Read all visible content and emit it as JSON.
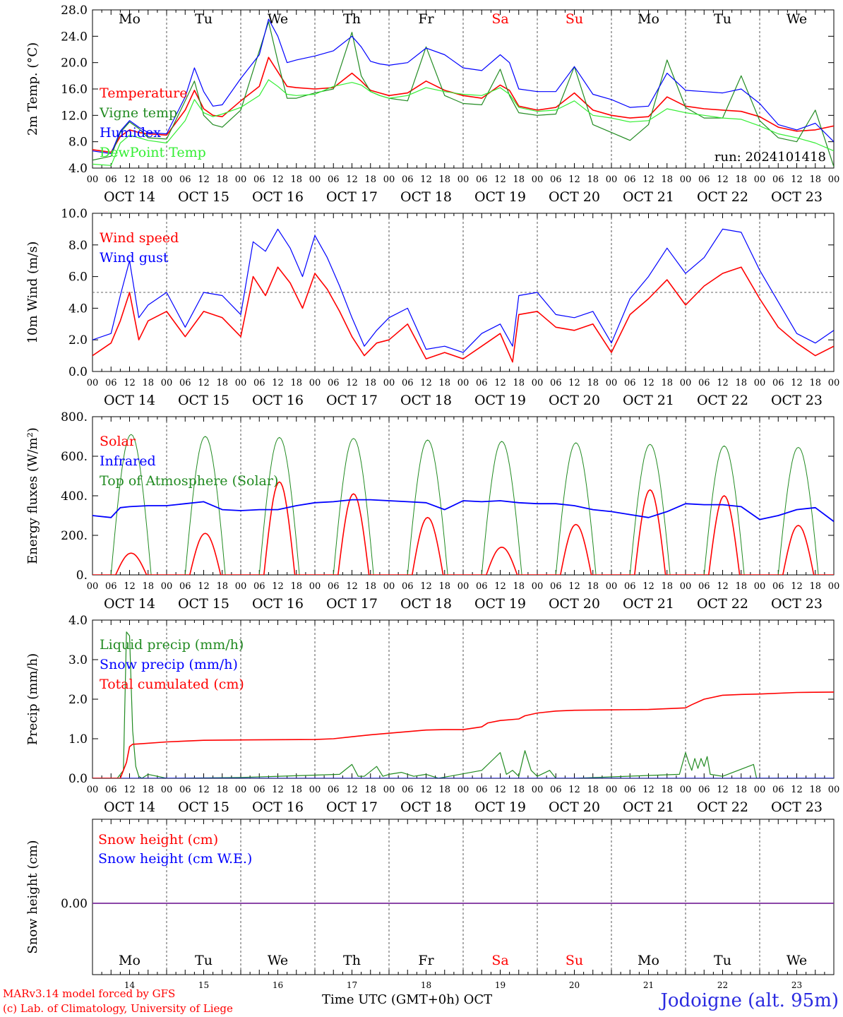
{
  "run_label": "run: 2024101418",
  "x_axis_title": "Time UTC (GMT+0h)",
  "month_label": "OCT",
  "station": "Jodoigne (alt. 95m)",
  "credits": [
    "MARv3.14 model forced by GFS",
    "(c) Lab. of Climatology, University of Liege"
  ],
  "weekdays": [
    {
      "label": "Mo",
      "weekend": false
    },
    {
      "label": "Tu",
      "weekend": false
    },
    {
      "label": "We",
      "weekend": false
    },
    {
      "label": "Th",
      "weekend": false
    },
    {
      "label": "Fr",
      "weekend": false
    },
    {
      "label": "Sa",
      "weekend": true
    },
    {
      "label": "Su",
      "weekend": true
    },
    {
      "label": "Mo",
      "weekend": false
    },
    {
      "label": "Tu",
      "weekend": false
    },
    {
      "label": "We",
      "weekend": false
    }
  ],
  "dates": [
    "OCT 14",
    "OCT 15",
    "OCT 16",
    "OCT 17",
    "OCT 18",
    "OCT 19",
    "OCT 20",
    "OCT 21",
    "OCT 22",
    "OCT 23"
  ],
  "day_numbers": [
    "14",
    "15",
    "16",
    "17",
    "18",
    "19",
    "20",
    "21",
    "22",
    "23"
  ],
  "hour_ticks": [
    "00",
    "06",
    "12",
    "18"
  ],
  "colors": {
    "red": "#ff0000",
    "green": "#228b22",
    "blue": "#0000ff",
    "lightgreen": "#33ee33",
    "purple": "#7b2d9b",
    "weekend": "#ff0000"
  },
  "chart_data": [
    {
      "type": "line",
      "ylabel": "2m Temp. (°C)",
      "ylim": [
        4,
        28
      ],
      "yticks": [
        "4.0",
        "8.0",
        "12.0",
        "16.0",
        "20.0",
        "24.0",
        "28.0"
      ],
      "x_unit": "hours since OCT 14 00 UTC",
      "series": [
        {
          "name": "Temperature",
          "color": "red",
          "x": [
            0,
            6,
            9,
            12,
            15,
            18,
            24,
            30,
            33,
            36,
            39,
            42,
            48,
            54,
            57,
            60,
            63,
            66,
            72,
            78,
            84,
            87,
            90,
            93,
            96,
            102,
            108,
            114,
            120,
            126,
            132,
            135,
            138,
            144,
            150,
            156,
            162,
            168,
            174,
            180,
            186,
            192,
            198,
            204,
            210,
            216,
            222,
            228,
            234,
            240
          ],
          "y": [
            6.8,
            6.4,
            8.8,
            9.8,
            9.4,
            9.2,
            9.0,
            12.8,
            15.8,
            13.0,
            12.0,
            11.8,
            14.2,
            16.4,
            20.8,
            18.6,
            16.4,
            16.2,
            16.0,
            16.2,
            18.4,
            17.2,
            15.8,
            15.4,
            15.0,
            15.4,
            17.2,
            15.8,
            15.0,
            14.6,
            16.6,
            15.8,
            13.4,
            12.8,
            13.2,
            15.4,
            12.8,
            12.0,
            11.6,
            11.8,
            14.8,
            13.4,
            13.0,
            12.8,
            12.6,
            11.8,
            10.2,
            9.6,
            9.8,
            10.4
          ]
        },
        {
          "name": "Vigne temp",
          "color": "green",
          "x": [
            0,
            6,
            9,
            12,
            15,
            18,
            24,
            30,
            33,
            36,
            39,
            42,
            48,
            54,
            57,
            60,
            63,
            66,
            72,
            78,
            84,
            87,
            90,
            93,
            96,
            102,
            108,
            114,
            120,
            126,
            132,
            135,
            138,
            144,
            150,
            156,
            162,
            168,
            174,
            180,
            186,
            192,
            198,
            204,
            210,
            216,
            222,
            228,
            234,
            240
          ],
          "y": [
            5.2,
            5.8,
            9.4,
            11.0,
            10.0,
            8.6,
            8.4,
            14.2,
            17.2,
            12.0,
            10.6,
            10.2,
            12.8,
            21.8,
            26.2,
            20.2,
            14.6,
            14.6,
            15.4,
            16.0,
            24.6,
            18.0,
            15.6,
            15.0,
            14.6,
            14.2,
            22.4,
            15.0,
            13.8,
            13.6,
            19.0,
            15.0,
            12.4,
            12.0,
            12.2,
            19.4,
            10.6,
            9.4,
            8.2,
            10.6,
            20.4,
            13.2,
            11.6,
            11.6,
            18.0,
            11.2,
            8.6,
            8.0,
            12.8,
            4.2
          ]
        },
        {
          "name": "Humidex",
          "color": "blue",
          "x": [
            0,
            6,
            9,
            12,
            15,
            18,
            24,
            30,
            33,
            36,
            39,
            42,
            48,
            54,
            57,
            60,
            63,
            66,
            72,
            78,
            84,
            87,
            90,
            93,
            96,
            102,
            108,
            114,
            120,
            126,
            132,
            135,
            138,
            144,
            150,
            156,
            162,
            168,
            174,
            180,
            186,
            192,
            198,
            204,
            210,
            216,
            222,
            228,
            234,
            240
          ],
          "y": [
            6.6,
            6.2,
            9.6,
            11.2,
            10.2,
            9.4,
            9.2,
            14.8,
            19.2,
            15.6,
            13.4,
            13.6,
            17.6,
            21.2,
            26.6,
            24.0,
            20.0,
            20.4,
            21.0,
            21.8,
            24.0,
            22.4,
            20.2,
            19.8,
            19.6,
            20.0,
            22.2,
            21.2,
            19.2,
            18.8,
            21.2,
            20.0,
            16.0,
            15.6,
            15.6,
            19.4,
            15.2,
            14.4,
            13.2,
            13.4,
            18.4,
            15.8,
            15.6,
            15.4,
            16.0,
            13.8,
            10.6,
            9.8,
            10.8,
            8.0
          ]
        },
        {
          "name": "DewPoint Temp",
          "color": "lightgreen",
          "x": [
            0,
            6,
            9,
            12,
            15,
            18,
            24,
            30,
            33,
            36,
            39,
            42,
            48,
            54,
            57,
            60,
            63,
            66,
            72,
            78,
            84,
            87,
            90,
            93,
            96,
            102,
            108,
            114,
            120,
            126,
            132,
            135,
            138,
            144,
            150,
            156,
            162,
            168,
            174,
            180,
            186,
            192,
            198,
            204,
            210,
            216,
            222,
            228,
            234,
            240
          ],
          "y": [
            4.6,
            4.4,
            7.8,
            9.0,
            8.6,
            8.2,
            7.8,
            11.2,
            14.4,
            12.4,
            11.8,
            12.2,
            13.2,
            15.0,
            17.4,
            16.4,
            15.2,
            15.0,
            15.2,
            16.4,
            17.0,
            16.6,
            15.6,
            15.0,
            14.6,
            15.0,
            16.2,
            15.6,
            15.2,
            15.0,
            16.2,
            15.2,
            13.2,
            12.6,
            12.8,
            14.2,
            12.0,
            11.6,
            11.0,
            11.2,
            13.0,
            12.4,
            12.0,
            11.6,
            11.4,
            10.4,
            9.2,
            8.6,
            7.8,
            6.6
          ]
        }
      ]
    },
    {
      "type": "line",
      "ylabel": "10m Wind (m/s)",
      "ylim": [
        0,
        10
      ],
      "yticks": [
        "0.0",
        "2.0",
        "4.0",
        "6.0",
        "8.0",
        "10.0"
      ],
      "reference_line": 5,
      "x_unit": "hours since OCT 14 00 UTC",
      "series": [
        {
          "name": "Wind speed",
          "color": "red",
          "x": [
            0,
            6,
            9,
            12,
            15,
            18,
            24,
            30,
            36,
            42,
            48,
            52,
            56,
            60,
            64,
            68,
            72,
            76,
            80,
            84,
            88,
            92,
            96,
            102,
            108,
            114,
            120,
            126,
            132,
            136,
            138,
            144,
            150,
            156,
            162,
            168,
            174,
            180,
            186,
            192,
            198,
            204,
            210,
            216,
            222,
            228,
            234,
            240
          ],
          "y": [
            1.0,
            1.8,
            3.2,
            5.0,
            2.0,
            3.2,
            3.8,
            2.2,
            3.8,
            3.4,
            2.2,
            6.0,
            4.8,
            6.6,
            5.6,
            4.0,
            6.2,
            5.2,
            3.8,
            2.2,
            1.0,
            1.8,
            2.0,
            3.0,
            0.8,
            1.2,
            0.8,
            1.6,
            2.4,
            0.6,
            3.6,
            3.8,
            2.8,
            2.6,
            3.0,
            1.2,
            3.6,
            4.6,
            5.8,
            4.2,
            5.4,
            6.2,
            6.6,
            4.6,
            2.8,
            1.8,
            1.0,
            1.6
          ]
        },
        {
          "name": "Wind gust",
          "color": "blue",
          "x": [
            0,
            6,
            9,
            12,
            15,
            18,
            24,
            30,
            36,
            42,
            48,
            52,
            56,
            60,
            64,
            68,
            72,
            76,
            80,
            84,
            88,
            92,
            96,
            102,
            108,
            114,
            120,
            126,
            132,
            136,
            138,
            144,
            150,
            156,
            162,
            168,
            174,
            180,
            186,
            192,
            198,
            204,
            210,
            216,
            222,
            228,
            234,
            240
          ],
          "y": [
            2.0,
            2.4,
            4.8,
            7.0,
            3.4,
            4.2,
            5.0,
            2.8,
            5.0,
            4.8,
            3.6,
            8.2,
            7.6,
            9.0,
            7.8,
            6.0,
            8.6,
            7.2,
            5.4,
            3.4,
            1.6,
            2.6,
            3.4,
            4.0,
            1.4,
            1.6,
            1.2,
            2.4,
            3.0,
            1.6,
            4.8,
            5.0,
            3.6,
            3.4,
            3.8,
            1.8,
            4.6,
            6.0,
            7.8,
            6.2,
            7.2,
            9.0,
            8.8,
            6.4,
            4.4,
            2.4,
            1.8,
            2.6
          ]
        }
      ]
    },
    {
      "type": "line",
      "ylabel": "Energy fluxes (W/m²)",
      "ylim": [
        0,
        800
      ],
      "yticks": [
        "0.",
        "200.",
        "400.",
        "600.",
        "800."
      ],
      "x_unit": "hours since OCT 14 00 UTC",
      "solar_daily_peaks": [
        110,
        210,
        470,
        410,
        290,
        140,
        255,
        430,
        400,
        250
      ],
      "toa_daily_peaks": [
        710,
        700,
        695,
        690,
        682,
        675,
        668,
        660,
        652,
        645
      ],
      "series": [
        {
          "name": "Solar",
          "color": "red"
        },
        {
          "name": "Infrared",
          "color": "blue",
          "x": [
            0,
            6,
            9,
            12,
            18,
            24,
            30,
            36,
            42,
            48,
            54,
            60,
            66,
            72,
            78,
            84,
            90,
            96,
            102,
            108,
            114,
            120,
            126,
            132,
            138,
            144,
            150,
            156,
            162,
            168,
            174,
            180,
            186,
            192,
            198,
            204,
            210,
            216,
            222,
            228,
            234,
            240
          ],
          "y": [
            300,
            290,
            340,
            345,
            350,
            350,
            360,
            370,
            330,
            325,
            330,
            330,
            350,
            365,
            370,
            380,
            380,
            375,
            370,
            365,
            330,
            375,
            370,
            375,
            365,
            360,
            360,
            350,
            330,
            320,
            305,
            290,
            320,
            360,
            355,
            355,
            345,
            280,
            300,
            330,
            340,
            270
          ]
        },
        {
          "name": "Top of Atmosphere (Solar)",
          "color": "green"
        }
      ]
    },
    {
      "type": "line",
      "ylabel": "Precip (mm/h)",
      "ylim": [
        0,
        4
      ],
      "yticks": [
        "0.0",
        "1.0",
        "2.0",
        "3.0",
        "4.0"
      ],
      "x_unit": "hours since OCT 14 00 UTC",
      "series": [
        {
          "name": "Liquid precip (mm/h)",
          "color": "green",
          "x": [
            0,
            8,
            10,
            11,
            12,
            13,
            14,
            15,
            16,
            18,
            24,
            48,
            80,
            84,
            86,
            88,
            92,
            94,
            96,
            100,
            104,
            108,
            112,
            126,
            130,
            132,
            134,
            136,
            138,
            140,
            142,
            144,
            148,
            150,
            156,
            190,
            192,
            193,
            194,
            195,
            196,
            197,
            198,
            199,
            200,
            204,
            214,
            215,
            216,
            240
          ],
          "y": [
            0,
            0,
            0.2,
            3.7,
            3.6,
            1.2,
            0.3,
            0.05,
            0,
            0.1,
            0,
            0.02,
            0.1,
            0.35,
            0.05,
            0.05,
            0.3,
            0.05,
            0.1,
            0.15,
            0.05,
            0.1,
            0,
            0.2,
            0.5,
            0.65,
            0.1,
            0.2,
            0.05,
            0.7,
            0.2,
            0.05,
            0.2,
            0,
            0,
            0.1,
            0.65,
            0.4,
            0.2,
            0.5,
            0.25,
            0.5,
            0.3,
            0.55,
            0.1,
            0.05,
            0.35,
            0,
            0,
            0
          ]
        },
        {
          "name": "Snow precip (mm/h)",
          "color": "blue",
          "x": [
            0,
            240
          ],
          "y": [
            0,
            0
          ]
        },
        {
          "name": "Total cumulated (cm)",
          "color": "red",
          "x": [
            0,
            9,
            11,
            12,
            13,
            15,
            24,
            36,
            48,
            72,
            78,
            84,
            90,
            96,
            102,
            108,
            114,
            120,
            126,
            128,
            132,
            138,
            140,
            144,
            150,
            156,
            168,
            180,
            192,
            194,
            198,
            204,
            210,
            216,
            228,
            240
          ],
          "y": [
            0,
            0,
            0.4,
            0.8,
            0.86,
            0.87,
            0.92,
            0.96,
            0.97,
            0.98,
            1.0,
            1.05,
            1.1,
            1.14,
            1.18,
            1.22,
            1.23,
            1.23,
            1.3,
            1.4,
            1.46,
            1.5,
            1.58,
            1.65,
            1.7,
            1.72,
            1.73,
            1.74,
            1.78,
            1.86,
            2.0,
            2.1,
            2.12,
            2.13,
            2.17,
            2.18
          ]
        }
      ]
    },
    {
      "type": "line",
      "ylabel": "Snow height (cm)",
      "yticks": [
        "0.00"
      ],
      "x_unit": "hours since OCT 14 00 UTC",
      "series": [
        {
          "name": "Snow height (cm)",
          "color": "red",
          "x": [
            0,
            240
          ],
          "y": [
            0,
            0
          ]
        },
        {
          "name": "Snow height (cm W.E.)",
          "color": "blue",
          "x": [
            0,
            240
          ],
          "y": [
            0,
            0
          ]
        }
      ]
    }
  ]
}
